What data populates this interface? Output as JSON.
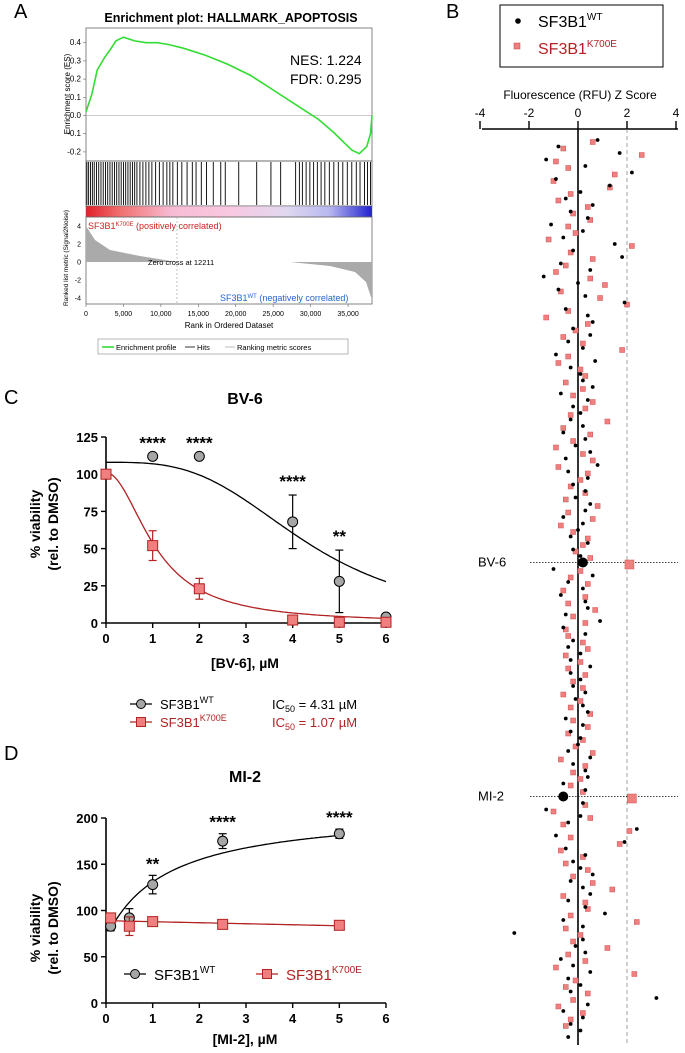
{
  "panels": {
    "a": "A",
    "b": "B",
    "c": "C",
    "d": "D"
  },
  "colors": {
    "wt_fill": "#a6a6a6",
    "wt_line": "#000000",
    "mut_fill": "#f08080",
    "mut_line": "#b22222",
    "es_line": "#33dd33",
    "legend_mut_text": "#b22222"
  },
  "chart_data": [
    {
      "id": "gsea",
      "type": "line",
      "title": "Enrichment plot: HALLMARK_APOPTOSIS",
      "ylabel": "Enrichment score (ES)",
      "ylim": [
        -0.25,
        0.45
      ],
      "yticks": [
        "0.4",
        "0.3",
        "0.2",
        "0.1",
        "0.0",
        "-0.1",
        "-0.2"
      ],
      "nes": "NES: 1.224",
      "fdr": "FDR: 0.295",
      "es_curve": {
        "x": [
          0,
          800,
          1500,
          2500,
          3200,
          4000,
          5000,
          6500,
          8000,
          9500,
          11000,
          13000,
          16000,
          19000,
          22000,
          25000,
          28000,
          31000,
          33000,
          34500,
          35500,
          36500,
          37500,
          38000,
          38200
        ],
        "y": [
          0.02,
          0.12,
          0.25,
          0.32,
          0.36,
          0.41,
          0.43,
          0.41,
          0.4,
          0.4,
          0.39,
          0.37,
          0.33,
          0.28,
          0.22,
          0.14,
          0.06,
          -0.02,
          -0.09,
          -0.15,
          -0.19,
          -0.21,
          -0.17,
          -0.1,
          0.0
        ]
      },
      "hits": [
        120,
        350,
        600,
        850,
        1100,
        1400,
        1700,
        2000,
        2300,
        2600,
        2900,
        3200,
        3500,
        3800,
        4100,
        4400,
        4700,
        5000,
        5300,
        5600,
        5900,
        6200,
        6500,
        6800,
        7200,
        7600,
        8000,
        8400,
        8800,
        9300,
        9800,
        10300,
        10800,
        11200,
        11600,
        12200,
        12800,
        13500,
        14200,
        14700,
        15400,
        16100,
        17000,
        18000,
        18600,
        20400,
        22800,
        24700,
        26000,
        28000,
        28500,
        28900,
        29400,
        29900,
        30400,
        30900,
        31400,
        31900,
        32500,
        33100,
        33700,
        34300,
        34900,
        35500,
        36100,
        36600,
        37200,
        37600,
        38000
      ],
      "mut_label_main": "SF3B1",
      "mut_label_sup": "K700E",
      "mut_label_rest": " (positively correlated)",
      "wt_label_main": "SF3B1",
      "wt_label_sup": "WT",
      "wt_label_rest": " (negatively correlated)",
      "zero_cross": "Zero cross at 12211",
      "metric_ylabel": "Ranked list metric (Signal2Noise)",
      "metric_yticks": [
        "4",
        "2",
        "0",
        "-2",
        "-4"
      ],
      "xlabel": "Rank in Ordered Dataset",
      "xticks": [
        "0",
        "5,000",
        "10,000",
        "15,000",
        "20,000",
        "25,000",
        "30,000",
        "35,000"
      ],
      "legend": [
        "Enrichment profile",
        "Hits",
        "Ranking metric scores"
      ]
    },
    {
      "id": "screen",
      "type": "scatter",
      "legend_wt_main": "SF3B1",
      "legend_wt_sup": "WT",
      "legend_mut_main": "SF3B1",
      "legend_mut_sup": "K700E",
      "xlabel": "Fluorescence (RFU) Z Score",
      "xlim": [
        -4,
        4
      ],
      "xticks": [
        "-4",
        "-2",
        "0",
        "2",
        "4"
      ],
      "threshold": 2,
      "highlight_labels": [
        "BV-6",
        "MI-2"
      ],
      "highlight_rows": [
        65,
        101
      ],
      "wt": [
        0.8,
        -0.8,
        1.7,
        -1.3,
        0.3,
        2.2,
        -0.9,
        1.3,
        0.1,
        -0.5,
        0.6,
        -0.3,
        0.4,
        -1.1,
        0.2,
        -0.6,
        1.5,
        -0.2,
        1.8,
        -0.7,
        0.5,
        -1.4,
        0.0,
        -0.8,
        0.3,
        1.9,
        -0.5,
        0.4,
        0.6,
        -0.2,
        0.5,
        -0.4,
        0.2,
        -0.9,
        0.7,
        -0.3,
        0.1,
        0.2,
        0.6,
        -0.7,
        0.4,
        -0.2,
        0.1,
        -0.3,
        0.2,
        -0.6,
        0.3,
        -0.1,
        0.5,
        -0.5,
        0.8,
        -0.4,
        0.4,
        -0.2,
        0.3,
        -0.1,
        0.5,
        0.3,
        -0.6,
        0.2,
        0.0,
        -0.3,
        0.4,
        -0.2,
        0.1,
        0.2,
        -1.0,
        0.6,
        -0.4,
        0.2,
        -0.7,
        0.3,
        0.4,
        -0.5,
        0.9,
        -0.6,
        0.3,
        -0.2,
        -0.4,
        0.1,
        -0.3,
        0.5,
        -0.3,
        0.1,
        -0.2,
        0.3,
        -0.1,
        0.2,
        0.4,
        -0.5,
        0.2,
        -0.3,
        0.1,
        0.0,
        -0.4,
        0.5,
        -0.2,
        0.3,
        0.4,
        -0.6,
        0.3,
        -0.6,
        0.2,
        -1.3,
        0.1,
        -0.4,
        2.4,
        -0.9,
        1.9,
        -0.5,
        0.3,
        -0.2,
        0.1,
        0.6,
        -0.3,
        0.2,
        0.5,
        -0.4,
        0.3,
        1.1,
        -0.6,
        0.2,
        -2.6,
        0.2,
        -0.1,
        0.3,
        -0.7,
        -0.2,
        0.5,
        -0.4,
        0.1,
        -0.3,
        3.2,
        0.4,
        -0.6,
        0.2,
        -0.3,
        0.1,
        -0.4
      ],
      "mut": [
        0.6,
        -0.6,
        2.6,
        -0.9,
        -0.4,
        1.5,
        -1.0,
        1.3,
        -0.3,
        -0.8,
        0.4,
        -0.2,
        0.5,
        -0.4,
        -0.1,
        -1.2,
        2.2,
        -0.3,
        0.6,
        -0.5,
        -0.9,
        0.5,
        1.1,
        -0.7,
        0.9,
        2.0,
        -0.4,
        -1.3,
        0.4,
        -0.1,
        -0.6,
        0.2,
        1.8,
        -0.4,
        -0.8,
        0.1,
        0.3,
        -0.5,
        0.2,
        -0.2,
        0.6,
        0.3,
        -0.3,
        1.2,
        -0.6,
        0.5,
        -0.2,
        -0.9,
        0.2,
        0.6,
        -0.8,
        0.4,
        0.1,
        -0.3,
        0.3,
        -0.5,
        0.8,
        -0.4,
        0.6,
        -0.7,
        -0.2,
        0.4,
        0.2,
        -0.1,
        0.5,
        2.1,
        0.1,
        -0.3,
        0.4,
        -0.6,
        0.3,
        -0.4,
        0.7,
        -0.2,
        0.3,
        -0.5,
        -0.4,
        0.2,
        0.4,
        -0.5,
        0.1,
        -0.4,
        0.3,
        -0.2,
        0.2,
        -0.6,
        0.1,
        -0.3,
        0.5,
        -0.2,
        0.4,
        -0.4,
        0.2,
        -0.1,
        0.6,
        -0.7,
        0.3,
        -0.2,
        0.1,
        -0.3,
        0.2,
        2.2,
        0.3,
        -1.0,
        0.5,
        -0.6,
        2.1,
        -0.3,
        1.7,
        -0.7,
        0.2,
        -0.5,
        0.4,
        -0.2,
        0.6,
        1.4,
        -0.6,
        0.3,
        0.4,
        -0.3,
        2.4,
        -0.5,
        0.1,
        -0.2,
        1.2,
        -0.4,
        0.3,
        -0.9,
        2.3,
        -0.1,
        -0.5,
        0.4,
        -0.2,
        -0.8,
        0.2,
        -0.3,
        -0.5
      ]
    },
    {
      "id": "bv6",
      "type": "scatter",
      "title": "BV-6",
      "xlabel": "[BV-6], µM",
      "ylabel_line1": "% viability",
      "ylabel_line2": "(rel. to DMSO)",
      "xlim": [
        0,
        6
      ],
      "ylim": [
        0,
        125
      ],
      "xticks": [
        "0",
        "1",
        "2",
        "3",
        "4",
        "5",
        "6"
      ],
      "yticks": [
        "0",
        "25",
        "50",
        "75",
        "100",
        "125"
      ],
      "series": [
        {
          "name": "SF3B1 WT",
          "x": [
            0,
            1,
            2,
            4,
            5,
            6
          ],
          "y": [
            100,
            112,
            112,
            68,
            28,
            4
          ],
          "err": [
            0,
            0,
            0,
            18,
            21,
            2
          ],
          "ic50": 4.31,
          "top": 108,
          "hill": 3.2
        },
        {
          "name": "SF3B1 K700E",
          "x": [
            0,
            1,
            2,
            4,
            5,
            6
          ],
          "y": [
            100,
            52,
            23,
            2,
            0.5,
            0.5
          ],
          "err": [
            0,
            10,
            7,
            1,
            1,
            1
          ],
          "ic50": 1.07,
          "top": 101,
          "hill": 2.0
        }
      ],
      "stars": [
        {
          "x": 1,
          "label": "****"
        },
        {
          "x": 2,
          "label": "****"
        },
        {
          "x": 4,
          "label": "****"
        },
        {
          "x": 5,
          "label": "**"
        }
      ],
      "legend": {
        "wt_main": "SF3B1",
        "wt_sup": "WT",
        "wt_ic50_label": "IC",
        "wt_ic50_sub": "50",
        "wt_ic50_value": " = 4.31 µM",
        "mut_main": "SF3B1",
        "mut_sup": "K700E",
        "mut_ic50_label": "IC",
        "mut_ic50_sub": "50",
        "mut_ic50_value": " = 1.07 µM"
      }
    },
    {
      "id": "mi2",
      "type": "scatter",
      "title": "MI-2",
      "xlabel": "[MI-2], µM",
      "ylabel_line1": "% viability",
      "ylabel_line2": "(rel. to DMSO)",
      "xlim": [
        0,
        6
      ],
      "ylim": [
        0,
        200
      ],
      "xticks": [
        "0",
        "1",
        "2",
        "3",
        "4",
        "5",
        "6"
      ],
      "yticks": [
        "0",
        "50",
        "100",
        "150",
        "200"
      ],
      "series": [
        {
          "name": "SF3B1 WT",
          "x": [
            0.1,
            0.5,
            1,
            2.5,
            5
          ],
          "y": [
            83,
            92,
            128,
            175,
            183
          ],
          "err": [
            5,
            10,
            10,
            8,
            5
          ]
        },
        {
          "name": "SF3B1 K700E",
          "x": [
            0.1,
            0.5,
            1,
            2.5,
            5
          ],
          "y": [
            92,
            83,
            88,
            85,
            84
          ],
          "err": [
            4,
            10,
            4,
            3,
            3
          ]
        }
      ],
      "stars": [
        {
          "x": 1,
          "label": "**"
        },
        {
          "x": 2.5,
          "label": "****"
        },
        {
          "x": 5,
          "label": "****"
        }
      ],
      "legend": {
        "wt_main": "SF3B1",
        "wt_sup": "WT",
        "mut_main": "SF3B1",
        "mut_sup": "K700E"
      }
    }
  ]
}
